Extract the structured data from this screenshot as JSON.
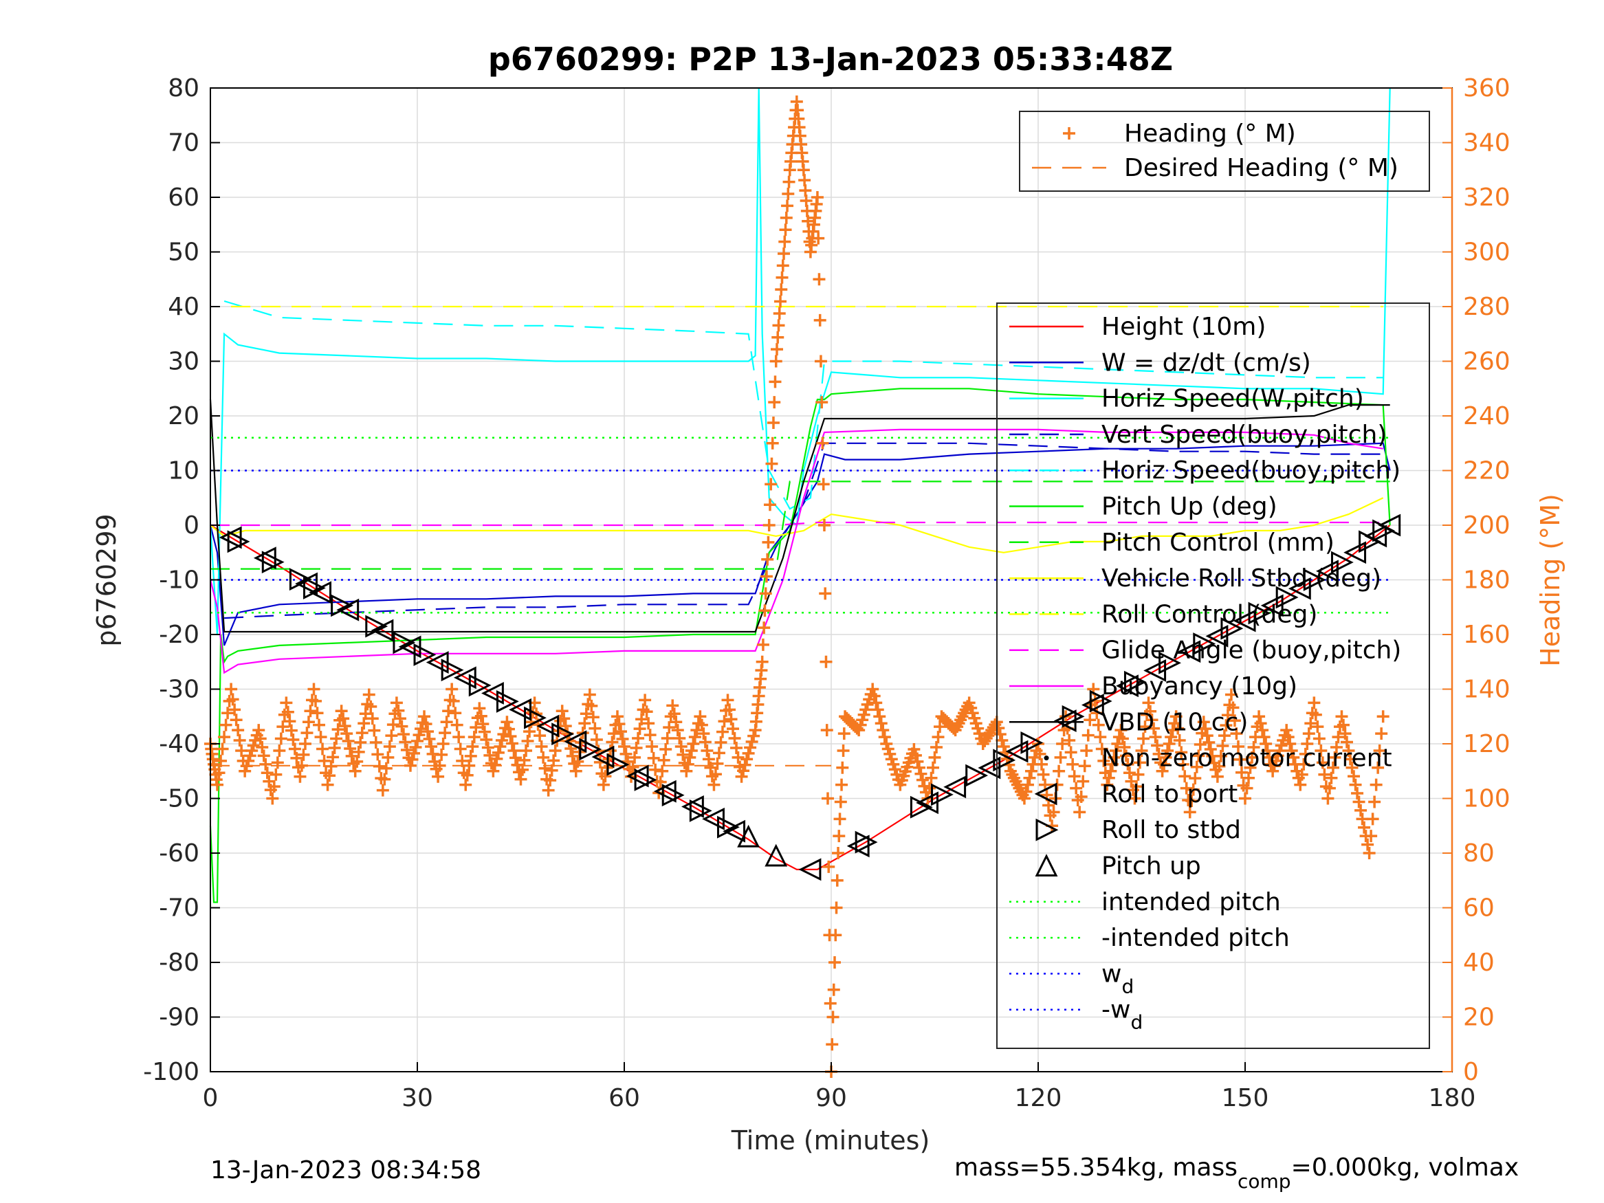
{
  "chart_data": {
    "type": "line",
    "title": "p6760299: P2P 13-Jan-2023 05:33:48Z",
    "xlabel": "Time (minutes)",
    "ylabel_left": "p6760299",
    "ylabel_right": "Heading (°M)",
    "xlim": [
      0,
      180
    ],
    "ylim_left": [
      -100,
      80
    ],
    "ylim_right": [
      0,
      360
    ],
    "xticks": [
      "0",
      "30",
      "60",
      "90",
      "120",
      "150",
      "180"
    ],
    "yticks_left": [
      "80",
      "70",
      "60",
      "50",
      "40",
      "30",
      "20",
      "10",
      "0",
      "-10",
      "-20",
      "-30",
      "-40",
      "-50",
      "-60",
      "-70",
      "-80",
      "-90",
      "-100"
    ],
    "yticks_right": [
      "360",
      "340",
      "320",
      "300",
      "280",
      "260",
      "240",
      "220",
      "200",
      "180",
      "160",
      "140",
      "120",
      "100",
      "80",
      "60",
      "40",
      "20",
      "0"
    ],
    "grid": true,
    "footer_left": "13-Jan-2023 08:34:58",
    "footer_right": {
      "a": "mass=55.354kg, mass",
      "sub": "comp",
      "b": "=0.000kg, volmax"
    },
    "colors": {
      "heading": "#f47920",
      "height": "#ff0000",
      "w": "#0000cc",
      "horiz_speed": "#00ffff",
      "pitch": "#00ee00",
      "roll": "#ffff00",
      "glide": "#ff00ff",
      "vbd": "#000000",
      "wd": "#0000ff",
      "intended_pitch": "#00ff00"
    },
    "legend_heading": {
      "placement": "top-right",
      "entries": [
        {
          "label": "Heading (° M)",
          "style": "marker-plus",
          "color": "#f47920"
        },
        {
          "label": "Desired Heading (° M)",
          "style": "dash",
          "color": "#f47920"
        }
      ]
    },
    "legend_main": {
      "placement": "right",
      "entries": [
        {
          "label": "Height (10m)",
          "style": "line",
          "color": "#ff0000"
        },
        {
          "label": "W = dz/dt (cm/s)",
          "style": "line",
          "color": "#0000cc"
        },
        {
          "label": "Horiz Speed(W,pitch)",
          "style": "line",
          "color": "#00ffff"
        },
        {
          "label": "Vert Speed(buoy,pitch)",
          "style": "dash",
          "color": "#0000cc"
        },
        {
          "label": "Horiz Speed(buoy,pitch)",
          "style": "dash",
          "color": "#00ffff"
        },
        {
          "label": "Pitch Up (deg)",
          "style": "line",
          "color": "#00ee00"
        },
        {
          "label": "Pitch Control (mm)",
          "style": "dash",
          "color": "#00ee00"
        },
        {
          "label": "Vehicle Roll Stbd (deg)",
          "style": "line",
          "color": "#ffff00"
        },
        {
          "label": "Roll Control (deg)",
          "style": "dash",
          "color": "#ffff00"
        },
        {
          "label": "Glide Angle (buoy,pitch)",
          "style": "dash",
          "color": "#ff00ff"
        },
        {
          "label": "Buoyancy (10g)",
          "style": "line",
          "color": "#ff00ff"
        },
        {
          "label": "VBD (10 cc)",
          "style": "line",
          "color": "#000000"
        },
        {
          "label": "Non-zero motor current",
          "style": "marker-dot",
          "color": "#000000"
        },
        {
          "label": "Roll to port",
          "style": "marker-tri-left",
          "color": "#000000"
        },
        {
          "label": "Roll to stbd",
          "style": "marker-tri-right",
          "color": "#000000"
        },
        {
          "label": "Pitch up",
          "style": "marker-tri-up",
          "color": "#000000"
        },
        {
          "label": "intended pitch",
          "style": "dot",
          "color": "#00ff00"
        },
        {
          "label": "-intended pitch",
          "style": "dot",
          "color": "#00ff00"
        },
        {
          "label": "w",
          "sub": "d",
          "style": "dot",
          "color": "#0000ff"
        },
        {
          "label": "-w",
          "sub": "d",
          "style": "dot",
          "color": "#0000ff"
        }
      ]
    },
    "series": [
      {
        "name": "Height (10m)",
        "axis": "left",
        "color": "#ff0000",
        "style": "solid",
        "x": [
          0,
          10,
          20,
          30,
          40,
          50,
          60,
          70,
          78,
          82,
          85,
          88,
          95,
          105,
          115,
          125,
          135,
          145,
          155,
          165,
          171
        ],
        "y": [
          0,
          -7.5,
          -15.5,
          -23,
          -30,
          -37.5,
          -44.5,
          -51.5,
          -57.5,
          -61,
          -63,
          -63,
          -58,
          -50,
          -43,
          -35,
          -28,
          -21,
          -14,
          -6,
          0
        ]
      },
      {
        "name": "W = dz/dt (cm/s)",
        "axis": "left",
        "color": "#0000cc",
        "style": "solid",
        "x": [
          0,
          1,
          2,
          4,
          10,
          20,
          30,
          40,
          50,
          60,
          70,
          79,
          81,
          84,
          88,
          89,
          92,
          100,
          110,
          120,
          130,
          140,
          150,
          160,
          170,
          171
        ],
        "y": [
          0,
          -5,
          -22,
          -16,
          -14.5,
          -14,
          -13.5,
          -13.5,
          -13,
          -13,
          -12.5,
          -12.5,
          -5,
          0,
          8,
          13,
          12,
          12,
          13,
          13.5,
          14,
          14,
          14.5,
          14.5,
          15,
          10
        ]
      },
      {
        "name": "Horiz Speed(W,pitch)",
        "axis": "left",
        "color": "#00ffff",
        "style": "solid",
        "x": [
          0,
          1,
          2,
          4,
          10,
          20,
          30,
          40,
          50,
          60,
          70,
          78,
          79,
          79.5,
          80,
          81,
          83,
          85,
          86,
          88,
          90,
          100,
          110,
          120,
          130,
          140,
          150,
          160,
          170,
          171
        ],
        "y": [
          0,
          -20,
          35,
          33,
          31.5,
          31,
          30.5,
          30.5,
          30,
          30,
          30,
          30,
          31,
          90,
          35,
          5,
          2,
          0,
          10,
          20,
          28,
          27,
          27,
          26.5,
          26,
          25.5,
          25,
          25,
          24,
          80
        ]
      },
      {
        "name": "Vert Speed(buoy,pitch)",
        "axis": "left",
        "color": "#0000cc",
        "style": "dash",
        "x": [
          2,
          10,
          20,
          30,
          40,
          50,
          60,
          70,
          78,
          82,
          86,
          89,
          100,
          110,
          120,
          130,
          140,
          150,
          160,
          170
        ],
        "y": [
          -17,
          -16.5,
          -16,
          -15.5,
          -15,
          -15,
          -14.5,
          -14.5,
          -14.5,
          -4,
          4,
          15,
          15,
          15,
          14.5,
          14,
          13.5,
          13.5,
          13,
          13
        ]
      },
      {
        "name": "Horiz Speed(buoy,pitch)",
        "axis": "left",
        "color": "#00ffff",
        "style": "dash",
        "x": [
          2,
          10,
          20,
          30,
          40,
          50,
          60,
          70,
          78,
          81,
          84,
          87,
          89,
          100,
          110,
          120,
          130,
          140,
          150,
          160,
          170
        ],
        "y": [
          41,
          38,
          37.5,
          37,
          36.5,
          36.5,
          36,
          35.5,
          35,
          10,
          3,
          5,
          30,
          30,
          29.5,
          29,
          28.5,
          28,
          27.5,
          27,
          27
        ]
      },
      {
        "name": "Pitch Up (deg)",
        "axis": "left",
        "color": "#00ee00",
        "style": "solid",
        "x": [
          0,
          0.5,
          1,
          1.5,
          2,
          2.5,
          4,
          10,
          20,
          30,
          40,
          50,
          60,
          70,
          79,
          81,
          84,
          85,
          87,
          88,
          89,
          90,
          100,
          110,
          120,
          130,
          140,
          150,
          160,
          170,
          171
        ],
        "y": [
          -55,
          -69,
          -69,
          -20,
          -25,
          -24,
          -23,
          -22,
          -21.5,
          -21,
          -20.5,
          -20.5,
          -20.5,
          -20,
          -20,
          -5,
          -1,
          5,
          18,
          23,
          23,
          24,
          25,
          25,
          24,
          23.5,
          23,
          23,
          22.5,
          22,
          0
        ]
      },
      {
        "name": "Pitch Control (mm)",
        "axis": "left",
        "color": "#00ee00",
        "style": "dash",
        "x": [
          0,
          78,
          82,
          84,
          171
        ],
        "y": [
          -8,
          -8,
          -8,
          8,
          8
        ]
      },
      {
        "name": "Vehicle Roll Stbd (deg)",
        "axis": "left",
        "color": "#ffff00",
        "style": "solid",
        "x": [
          0,
          2,
          5,
          10,
          15,
          20,
          25,
          30,
          35,
          40,
          45,
          50,
          55,
          60,
          65,
          70,
          75,
          78,
          82,
          86,
          90,
          95,
          100,
          105,
          110,
          115,
          120,
          125,
          130,
          135,
          140,
          145,
          150,
          155,
          160,
          165,
          170
        ],
        "y": [
          0,
          -2,
          -1,
          -1,
          -1,
          -1,
          -1,
          -1,
          -1,
          -1,
          -1,
          -1,
          -1,
          -1,
          -1,
          -1,
          -1,
          -1,
          -2,
          -1,
          2,
          1,
          0,
          -2,
          -4,
          -5,
          -4,
          -3,
          -3,
          -2,
          -2,
          -2,
          -1,
          -1,
          0,
          2,
          5
        ]
      },
      {
        "name": "Roll Control (deg)",
        "axis": "left",
        "color": "#ffff00",
        "style": "dash",
        "x": [
          3,
          10,
          20,
          30,
          40,
          50,
          60,
          70,
          78,
          95,
          110,
          120,
          130,
          140,
          150,
          160,
          170
        ],
        "y": [
          40,
          40,
          40,
          40,
          40,
          40,
          40,
          40,
          40,
          40,
          40,
          40,
          40,
          40,
          40,
          40,
          40
        ]
      },
      {
        "name": "Glide Angle (buoy,pitch)",
        "axis": "left",
        "color": "#ff00ff",
        "style": "dash",
        "x": [
          0,
          78,
          82,
          88,
          171
        ],
        "y": [
          0,
          0,
          0,
          0.5,
          0.5
        ]
      },
      {
        "name": "Buoyancy (10g)",
        "axis": "left",
        "color": "#ff00ff",
        "style": "solid",
        "x": [
          0,
          1,
          2,
          4,
          10,
          20,
          30,
          40,
          50,
          60,
          70,
          79,
          83,
          86,
          89,
          100,
          110,
          120,
          130,
          140,
          150,
          160,
          165,
          170
        ],
        "y": [
          -10,
          -15,
          -27,
          -25.5,
          -24.5,
          -24,
          -23.5,
          -23.5,
          -23.5,
          -23,
          -23,
          -23,
          -10,
          5,
          17,
          17.5,
          17.5,
          17.5,
          17,
          17,
          17,
          16.5,
          15,
          14
        ]
      },
      {
        "name": "VBD (10 cc)",
        "axis": "left",
        "color": "#000000",
        "style": "solid",
        "x": [
          0,
          1,
          2,
          4,
          10,
          20,
          30,
          40,
          50,
          60,
          70,
          79,
          83,
          86,
          89,
          100,
          110,
          120,
          130,
          140,
          150,
          160,
          165,
          171
        ],
        "y": [
          23,
          0,
          -19.5,
          -19.5,
          -19.5,
          -19.5,
          -19.5,
          -19.5,
          -19.5,
          -19.5,
          -19.5,
          -19.5,
          -6,
          8,
          19.5,
          19.5,
          19.5,
          19.5,
          19.5,
          19.5,
          19.5,
          20,
          22,
          22
        ]
      },
      {
        "name": "intended pitch",
        "axis": "left",
        "color": "#00ff00",
        "style": "dot",
        "x": [
          0,
          171
        ],
        "y": [
          16,
          16
        ]
      },
      {
        "name": "-intended pitch",
        "axis": "left",
        "color": "#00ff00",
        "style": "dot",
        "x": [
          0,
          171
        ],
        "y": [
          -16,
          -16
        ]
      },
      {
        "name": "w_d",
        "axis": "left",
        "color": "#0000ff",
        "style": "dot",
        "x": [
          0,
          171
        ],
        "y": [
          10,
          10
        ]
      },
      {
        "name": "-w_d",
        "axis": "left",
        "color": "#0000ff",
        "style": "dot",
        "x": [
          0,
          171
        ],
        "y": [
          -10,
          -10
        ]
      },
      {
        "name": "Desired Heading (° M)",
        "axis": "right",
        "color": "#f47920",
        "style": "dash",
        "x": [
          0,
          90
        ],
        "y": [
          112,
          112
        ]
      },
      {
        "name": "Heading (° M)",
        "axis": "right",
        "color": "#f47920",
        "style": "plus",
        "x": [
          0,
          1,
          3,
          5,
          7,
          9,
          11,
          13,
          15,
          17,
          19,
          21,
          23,
          25,
          27,
          29,
          31,
          33,
          35,
          37,
          39,
          41,
          43,
          45,
          47,
          49,
          51,
          53,
          55,
          57,
          59,
          61,
          63,
          65,
          67,
          69,
          71,
          73,
          75,
          77,
          79,
          80,
          81,
          82,
          83,
          84,
          85,
          86,
          87,
          88,
          89,
          90,
          91,
          92,
          94,
          96,
          98,
          100,
          102,
          104,
          106,
          108,
          110,
          112,
          114,
          116,
          118,
          120,
          122,
          124,
          126,
          128,
          130,
          132,
          134,
          136,
          138,
          140,
          142,
          144,
          146,
          148,
          150,
          152,
          154,
          156,
          158,
          160,
          162,
          164,
          166,
          168,
          170
        ],
        "y": [
          120,
          105,
          140,
          110,
          125,
          100,
          135,
          108,
          140,
          105,
          132,
          110,
          138,
          103,
          135,
          112,
          130,
          108,
          140,
          105,
          133,
          110,
          128,
          107,
          135,
          103,
          132,
          110,
          138,
          105,
          130,
          108,
          136,
          102,
          134,
          110,
          130,
          105,
          136,
          108,
          125,
          150,
          200,
          260,
          295,
          330,
          355,
          330,
          300,
          320,
          200,
          0,
          80,
          130,
          125,
          140,
          120,
          105,
          118,
          100,
          130,
          125,
          135,
          120,
          128,
          110,
          100,
          120,
          90,
          130,
          95,
          140,
          105,
          125,
          100,
          135,
          110,
          130,
          95,
          128,
          108,
          138,
          100,
          130,
          110,
          125,
          105,
          135,
          100,
          130,
          105,
          80,
          130
        ]
      }
    ],
    "markers": {
      "roll_to_port": {
        "x": [
          3,
          8,
          14,
          16,
          20,
          25,
          29,
          33,
          37,
          41,
          45,
          49,
          53,
          57,
          62,
          66,
          70,
          73,
          76,
          87,
          94,
          104,
          108,
          113,
          117,
          124,
          128,
          133,
          137,
          142,
          146,
          150,
          154,
          158,
          162,
          166,
          169,
          171
        ]
      },
      "roll_to_stbd": {
        "x": [
          4,
          9,
          13,
          15,
          19,
          24,
          28,
          31,
          35,
          39,
          43,
          47,
          51,
          55,
          59,
          63,
          67,
          71,
          75,
          95,
          103,
          106,
          111,
          115,
          119,
          125,
          129,
          134,
          139,
          144,
          148,
          152,
          156,
          160,
          164,
          168,
          170
        ]
      },
      "pitch_up": {
        "x": [
          78,
          82
        ]
      }
    }
  }
}
